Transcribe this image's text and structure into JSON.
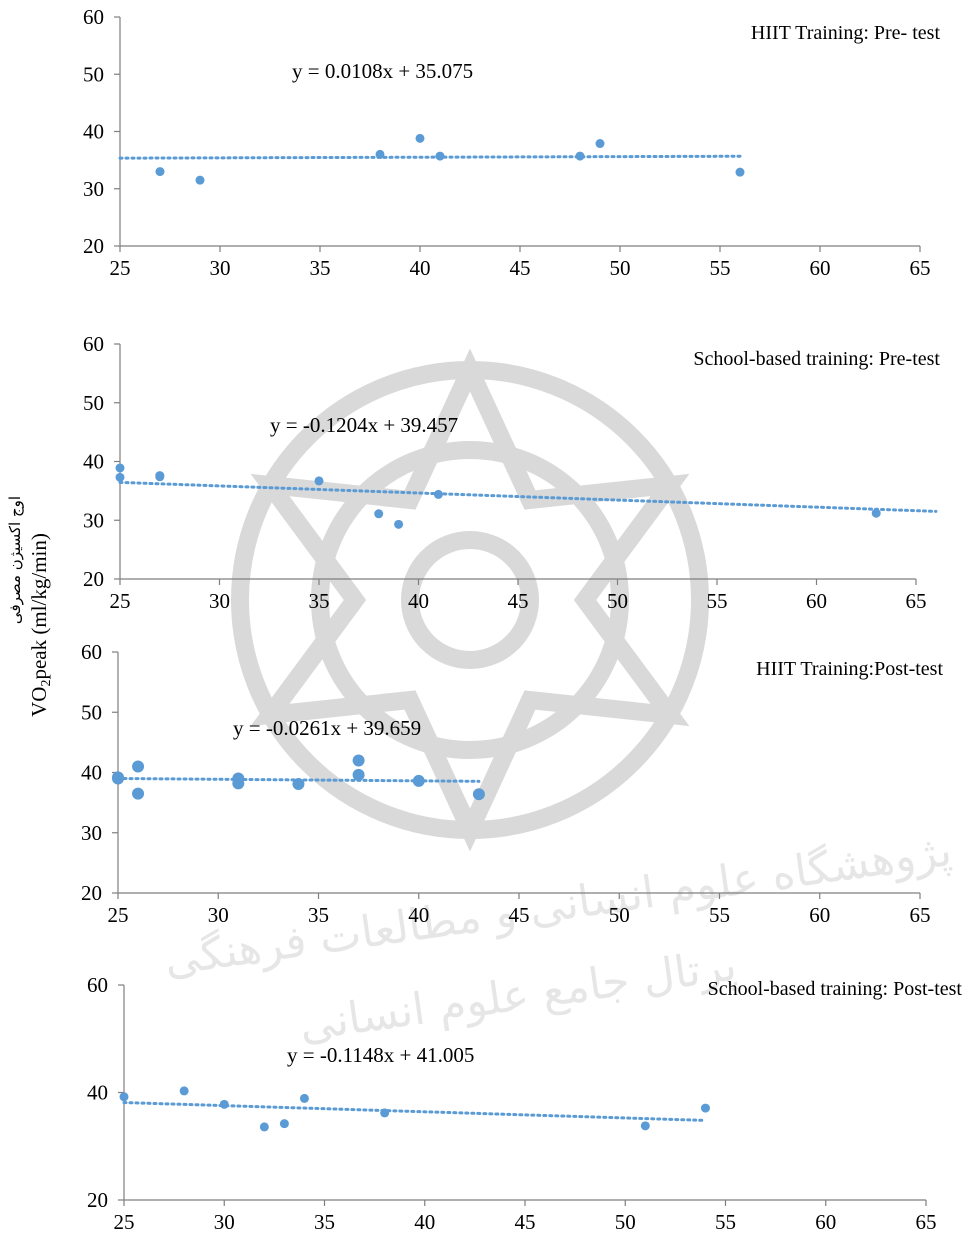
{
  "y_axis_label": {
    "main": "VO",
    "sub": "2",
    "rest": "peak (ml/kg/min)",
    "persian": "اوج اکسیژن مصرفی"
  },
  "watermark_text": [
    "پژوهشگاه علوم انسانی و مطالعات فرهنگی",
    "پرتال جامع علوم انسانی"
  ],
  "chart_data": [
    {
      "type": "scatter",
      "title": "HIIT Training: Pre- test",
      "equation": "y = 0.0108x + 35.075",
      "xlim": [
        25,
        65
      ],
      "ylim": [
        20,
        60
      ],
      "xticks": [
        25,
        30,
        35,
        40,
        45,
        50,
        55,
        60,
        65
      ],
      "yticks": [
        20,
        30,
        40,
        50,
        60
      ],
      "trendline": {
        "slope": 0.0108,
        "intercept": 35.075,
        "x_range": [
          25,
          56
        ]
      },
      "points": [
        {
          "x": 27,
          "y": 33
        },
        {
          "x": 29,
          "y": 31.5
        },
        {
          "x": 38,
          "y": 36
        },
        {
          "x": 40,
          "y": 38.8
        },
        {
          "x": 41,
          "y": 35.7
        },
        {
          "x": 48,
          "y": 35.7
        },
        {
          "x": 49,
          "y": 37.9
        },
        {
          "x": 56,
          "y": 32.9
        }
      ]
    },
    {
      "type": "scatter",
      "title": "School-based training: Pre-test",
      "equation": "y = -0.1204x + 39.457",
      "xlim": [
        25,
        65
      ],
      "ylim": [
        20,
        60
      ],
      "xticks": [
        25,
        30,
        35,
        40,
        45,
        50,
        55,
        60,
        65
      ],
      "yticks": [
        20,
        30,
        40,
        50,
        60
      ],
      "trendline": {
        "slope": -0.1204,
        "intercept": 39.457,
        "x_range": [
          25,
          66
        ]
      },
      "points": [
        {
          "x": 25,
          "y": 38.9
        },
        {
          "x": 25,
          "y": 37.3
        },
        {
          "x": 27,
          "y": 37.6
        },
        {
          "x": 27,
          "y": 37.4
        },
        {
          "x": 35,
          "y": 36.7
        },
        {
          "x": 38,
          "y": 31.1
        },
        {
          "x": 39,
          "y": 29.3
        },
        {
          "x": 41,
          "y": 34.4
        },
        {
          "x": 63,
          "y": 31.2
        }
      ]
    },
    {
      "type": "scatter",
      "title": "HIIT Training:Post-test",
      "equation": "y = -0.0261x + 39.659",
      "xlim": [
        25,
        65
      ],
      "ylim": [
        20,
        60
      ],
      "xticks": [
        25,
        30,
        35,
        40,
        45,
        50,
        55,
        60,
        65
      ],
      "yticks": [
        20,
        30,
        40,
        50,
        60
      ],
      "trendline": {
        "slope": -0.0261,
        "intercept": 39.659,
        "x_range": [
          25,
          43
        ]
      },
      "points": [
        {
          "x": 25,
          "y": 39
        },
        {
          "x": 25,
          "y": 39.2
        },
        {
          "x": 26,
          "y": 41
        },
        {
          "x": 26,
          "y": 36.5
        },
        {
          "x": 31,
          "y": 39
        },
        {
          "x": 31,
          "y": 38.2
        },
        {
          "x": 34,
          "y": 38.1
        },
        {
          "x": 37,
          "y": 42
        },
        {
          "x": 37,
          "y": 39.6
        },
        {
          "x": 40,
          "y": 38.6
        },
        {
          "x": 43,
          "y": 36.4
        }
      ]
    },
    {
      "type": "scatter",
      "title": "School-based training: Post-test",
      "equation": "y = -0.1148x + 41.005",
      "xlim": [
        25,
        65
      ],
      "ylim": [
        20,
        60
      ],
      "xticks": [
        25,
        30,
        35,
        40,
        45,
        50,
        55,
        60,
        65
      ],
      "yticks": [
        20,
        40,
        60
      ],
      "trendline": {
        "slope": -0.1148,
        "intercept": 41.005,
        "x_range": [
          25,
          54
        ]
      },
      "points": [
        {
          "x": 25,
          "y": 39.2
        },
        {
          "x": 28,
          "y": 40.3
        },
        {
          "x": 30,
          "y": 37.8
        },
        {
          "x": 32,
          "y": 33.6
        },
        {
          "x": 33,
          "y": 34.2
        },
        {
          "x": 34,
          "y": 38.9
        },
        {
          "x": 38,
          "y": 36.2
        },
        {
          "x": 51,
          "y": 33.8
        },
        {
          "x": 54,
          "y": 37.1
        }
      ]
    }
  ]
}
